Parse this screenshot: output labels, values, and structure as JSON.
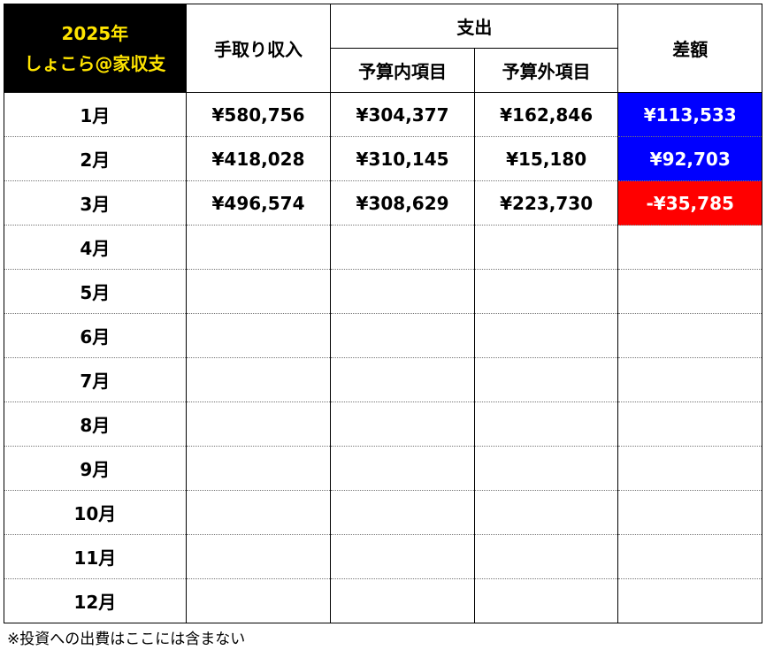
{
  "header": {
    "year_line": "2025年",
    "name_line": "しょこら@家収支",
    "income_label": "手取り収入",
    "expense_label": "支出",
    "budget_in_label": "予算内項目",
    "budget_out_label": "予算外項目",
    "diff_label": "差額"
  },
  "colors": {
    "title_bg": "#000000",
    "title_text": "#ffe400",
    "positive_diff_bg": "#0000ff",
    "negative_diff_bg": "#ff0000"
  },
  "rows": [
    {
      "month": "1月",
      "income": "¥580,756",
      "budget_in": "¥304,377",
      "budget_out": "¥162,846",
      "diff": "¥113,533",
      "diff_sign": "positive"
    },
    {
      "month": "2月",
      "income": "¥418,028",
      "budget_in": "¥310,145",
      "budget_out": "¥15,180",
      "diff": "¥92,703",
      "diff_sign": "positive"
    },
    {
      "month": "3月",
      "income": "¥496,574",
      "budget_in": "¥308,629",
      "budget_out": "¥223,730",
      "diff": "-¥35,785",
      "diff_sign": "negative"
    },
    {
      "month": "4月",
      "income": "",
      "budget_in": "",
      "budget_out": "",
      "diff": "",
      "diff_sign": ""
    },
    {
      "month": "5月",
      "income": "",
      "budget_in": "",
      "budget_out": "",
      "diff": "",
      "diff_sign": ""
    },
    {
      "month": "6月",
      "income": "",
      "budget_in": "",
      "budget_out": "",
      "diff": "",
      "diff_sign": ""
    },
    {
      "month": "7月",
      "income": "",
      "budget_in": "",
      "budget_out": "",
      "diff": "",
      "diff_sign": ""
    },
    {
      "month": "8月",
      "income": "",
      "budget_in": "",
      "budget_out": "",
      "diff": "",
      "diff_sign": ""
    },
    {
      "month": "9月",
      "income": "",
      "budget_in": "",
      "budget_out": "",
      "diff": "",
      "diff_sign": ""
    },
    {
      "month": "10月",
      "income": "",
      "budget_in": "",
      "budget_out": "",
      "diff": "",
      "diff_sign": ""
    },
    {
      "month": "11月",
      "income": "",
      "budget_in": "",
      "budget_out": "",
      "diff": "",
      "diff_sign": ""
    },
    {
      "month": "12月",
      "income": "",
      "budget_in": "",
      "budget_out": "",
      "diff": "",
      "diff_sign": ""
    }
  ],
  "footnote": "※投資への出費はここには含まない"
}
